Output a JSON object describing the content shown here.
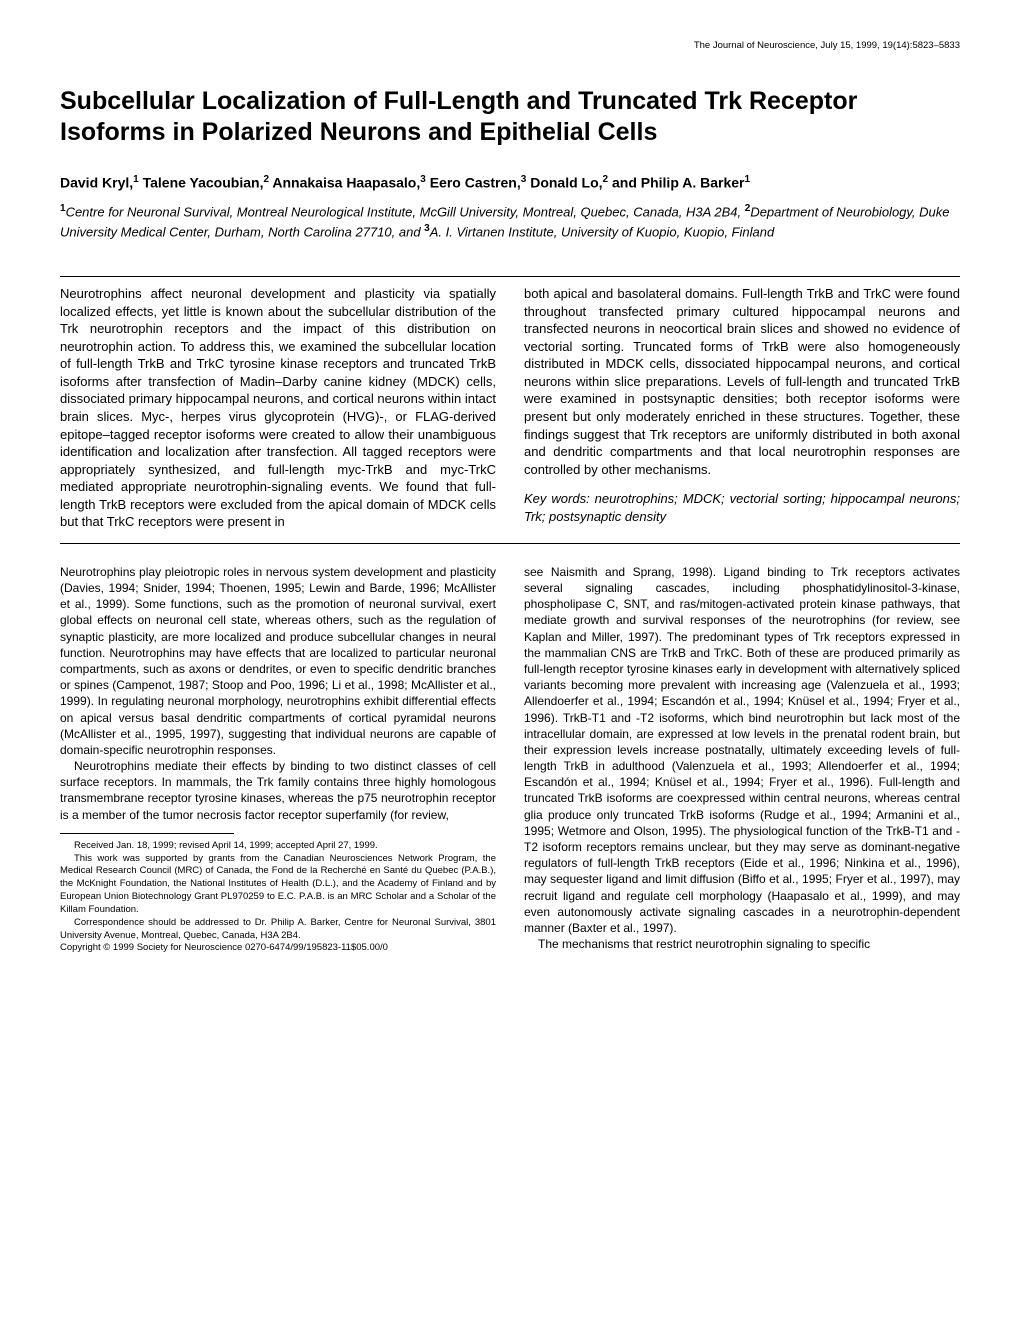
{
  "header": "The Journal of Neuroscience, July 15, 1999, 19(14):5823–5833",
  "title": "Subcellular Localization of Full-Length and Truncated Trk Receptor Isoforms in Polarized Neurons and Epithelial Cells",
  "authors": {
    "a1": "David Kryl,",
    "s1": "1",
    "a2": " Talene Yacoubian,",
    "s2": "2",
    "a3": " Annakaisa Haapasalo,",
    "s3": "3",
    "a4": " Eero Castren,",
    "s4": "3",
    "a5": " Donald Lo,",
    "s5": "2",
    "a6": " and Philip A. Barker",
    "s6": "1"
  },
  "affiliations": {
    "n1": "1",
    "t1": "Centre for Neuronal Survival, Montreal Neurological Institute, McGill University, Montreal, Quebec, Canada, H3A 2B4, ",
    "n2": "2",
    "t2": "Department of Neurobiology, Duke University Medical Center, Durham, North Carolina 27710, and ",
    "n3": "3",
    "t3": "A. I. Virtanen Institute, University of Kuopio, Kuopio, Finland"
  },
  "abstract": {
    "left": "Neurotrophins affect neuronal development and plasticity via spatially localized effects, yet little is known about the subcellular distribution of the Trk neurotrophin receptors and the impact of this distribution on neurotrophin action. To address this, we examined the subcellular location of full-length TrkB and TrkC tyrosine kinase receptors and truncated TrkB isoforms after transfection of Madin–Darby canine kidney (MDCK) cells, dissociated primary hippocampal neurons, and cortical neurons within intact brain slices. Myc-, herpes virus glycoprotein (HVG)-, or FLAG-derived epitope–tagged receptor isoforms were created to allow their unambiguous identification and localization after transfection. All tagged receptors were appropriately synthesized, and full-length myc-TrkB and myc-TrkC mediated appropriate neurotrophin-signaling events. We found that full-length TrkB receptors were excluded from the apical domain of MDCK cells but that TrkC receptors were present in",
    "right": "both apical and basolateral domains. Full-length TrkB and TrkC were found throughout transfected primary cultured hippocampal neurons and transfected neurons in neocortical brain slices and showed no evidence of vectorial sorting. Truncated forms of TrkB were also homogeneously distributed in MDCK cells, dissociated hippocampal neurons, and cortical neurons within slice preparations. Levels of full-length and truncated TrkB were examined in postsynaptic densities; both receptor isoforms were present but only moderately enriched in these structures. Together, these findings suggest that Trk receptors are uniformly distributed in both axonal and dendritic compartments and that local neurotrophin responses are controlled by other mechanisms.",
    "keywords": "Key words: neurotrophins; MDCK; vectorial sorting; hippocampal neurons; Trk; postsynaptic density"
  },
  "body": {
    "left_p1": "Neurotrophins play pleiotropic roles in nervous system development and plasticity (Davies, 1994; Snider, 1994; Thoenen, 1995; Lewin and Barde, 1996; McAllister et al., 1999). Some functions, such as the promotion of neuronal survival, exert global effects on neuronal cell state, whereas others, such as the regulation of synaptic plasticity, are more localized and produce subcellular changes in neural function. Neurotrophins may have effects that are localized to particular neuronal compartments, such as axons or dendrites, or even to specific dendritic branches or spines (Campenot, 1987; Stoop and Poo, 1996; Li et al., 1998; McAllister et al., 1999). In regulating neuronal morphology, neurotrophins exhibit differential effects on apical versus basal dendritic compartments of cortical pyramidal neurons (McAllister et al., 1995, 1997), suggesting that individual neurons are capable of domain-specific neurotrophin responses.",
    "left_p2": "Neurotrophins mediate their effects by binding to two distinct classes of cell surface receptors. In mammals, the Trk family contains three highly homologous transmembrane receptor tyrosine kinases, whereas the p75 neurotrophin receptor is a member of the tumor necrosis factor receptor superfamily (for review,",
    "right_p1": "see Naismith and Sprang, 1998). Ligand binding to Trk receptors activates several signaling cascades, including phosphatidylinositol-3-kinase, phospholipase C, SNT, and ras/mitogen-activated protein kinase pathways, that mediate growth and survival responses of the neurotrophins (for review, see Kaplan and Miller, 1997). The predominant types of Trk receptors expressed in the mammalian CNS are TrkB and TrkC. Both of these are produced primarily as full-length receptor tyrosine kinases early in development with alternatively spliced variants becoming more prevalent with increasing age (Valenzuela et al., 1993; Allendoerfer et al., 1994; Escandón et al., 1994; Knüsel et al., 1994; Fryer et al., 1996). TrkB-T1 and -T2 isoforms, which bind neurotrophin but lack most of the intracellular domain, are expressed at low levels in the prenatal rodent brain, but their expression levels increase postnatally, ultimately exceeding levels of full-length TrkB in adulthood (Valenzuela et al., 1993; Allendoerfer et al., 1994; Escandón et al., 1994; Knüsel et al., 1994; Fryer et al., 1996). Full-length and truncated TrkB isoforms are coexpressed within central neurons, whereas central glia produce only truncated TrkB isoforms (Rudge et al., 1994; Armanini et al., 1995; Wetmore and Olson, 1995). The physiological function of the TrkB-T1 and -T2 isoform receptors remains unclear, but they may serve as dominant-negative regulators of full-length TrkB receptors (Eide et al., 1996; Ninkina et al., 1996), may sequester ligand and limit diffusion (Biffo et al., 1995; Fryer et al., 1997), may recruit ligand and regulate cell morphology (Haapasalo et al., 1999), and may even autonomously activate signaling cascades in a neurotrophin-dependent manner (Baxter et al., 1997).",
    "right_p2": "The mechanisms that restrict neurotrophin signaling to specific"
  },
  "footnotes": {
    "f1": "Received Jan. 18, 1999; revised April 14, 1999; accepted April 27, 1999.",
    "f2": "This work was supported by grants from the Canadian Neurosciences Network Program, the Medical Research Council (MRC) of Canada, the Fond de la Recherché en Santé du Quebec (P.A.B.), the McKnight Foundation, the National Institutes of Health (D.L.), and the Academy of Finland and by European Union Biotechnology Grant PL970259 to E.C. P.A.B. is an MRC Scholar and a Scholar of the Killam Foundation.",
    "f3": "Correspondence should be addressed to Dr. Philip A. Barker, Centre for Neuronal Survival, 3801 University Avenue, Montreal, Quebec, Canada, H3A 2B4.",
    "f4": "Copyright © 1999 Society for Neuroscience   0270-6474/99/195823-11$05.00/0"
  }
}
